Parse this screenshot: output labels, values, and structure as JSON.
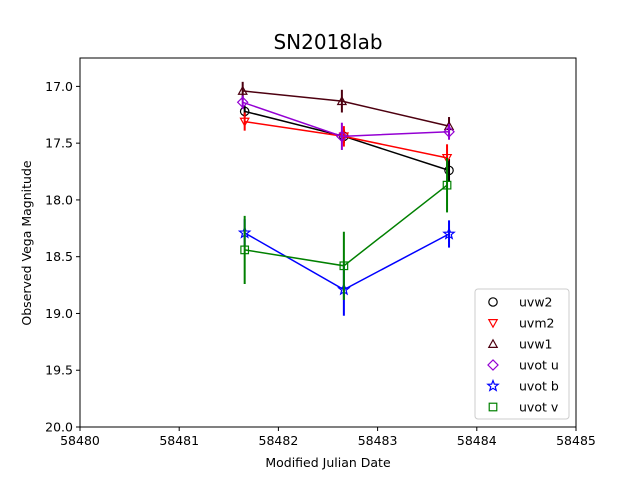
{
  "chart_data": {
    "type": "line",
    "title": "SN2018lab",
    "xlabel": "Modified Julian Date",
    "ylabel": "Observed Vega Magnitude",
    "xlim": [
      58480,
      58485
    ],
    "ylim": [
      20.0,
      16.75
    ],
    "y_inverted": true,
    "grid": false,
    "legend_position": "lower-right",
    "x_ticks": [
      58480,
      58481,
      58482,
      58483,
      58484,
      58485
    ],
    "x_tick_labels": [
      "58480",
      "58481",
      "58482",
      "58483",
      "58484",
      "58485"
    ],
    "y_ticks": [
      17.0,
      17.5,
      18.0,
      18.5,
      19.0,
      19.5,
      20.0
    ],
    "y_tick_labels": [
      "17.0",
      "17.5",
      "18.0",
      "18.5",
      "19.0",
      "19.5",
      "20.0"
    ],
    "series": [
      {
        "name": "uvw2",
        "color": "#000000",
        "marker": "circle",
        "x": [
          58481.66,
          58482.66,
          58483.72
        ],
        "y": [
          17.22,
          17.44,
          17.74
        ],
        "err": [
          0.05,
          0.06,
          0.1
        ]
      },
      {
        "name": "uvm2",
        "color": "#ff0000",
        "marker": "triangle-down",
        "x": [
          58481.66,
          58482.66,
          58483.7
        ],
        "y": [
          17.31,
          17.44,
          17.63
        ],
        "err": [
          0.08,
          0.09,
          0.12
        ]
      },
      {
        "name": "uvw1",
        "color": "#4d0010",
        "marker": "triangle-up",
        "x": [
          58481.64,
          58482.64,
          58483.72
        ],
        "y": [
          17.04,
          17.13,
          17.35
        ],
        "err": [
          0.08,
          0.1,
          0.08
        ]
      },
      {
        "name": "uvot u",
        "color": "#9400d3",
        "marker": "diamond",
        "x": [
          58481.64,
          58482.64,
          58483.72
        ],
        "y": [
          17.14,
          17.44,
          17.4
        ],
        "err": [
          0.06,
          0.12,
          0.07
        ]
      },
      {
        "name": "uvot b",
        "color": "#0000ff",
        "marker": "star",
        "x": [
          58481.66,
          58482.66,
          58483.72
        ],
        "y": [
          18.29,
          18.79,
          18.3
        ],
        "err": [
          0.12,
          0.23,
          0.12
        ]
      },
      {
        "name": "uvot v",
        "color": "#008000",
        "marker": "square",
        "x": [
          58481.66,
          58482.66,
          58483.7
        ],
        "y": [
          18.44,
          18.58,
          17.87
        ],
        "err": [
          0.3,
          0.3,
          0.24
        ]
      }
    ]
  }
}
